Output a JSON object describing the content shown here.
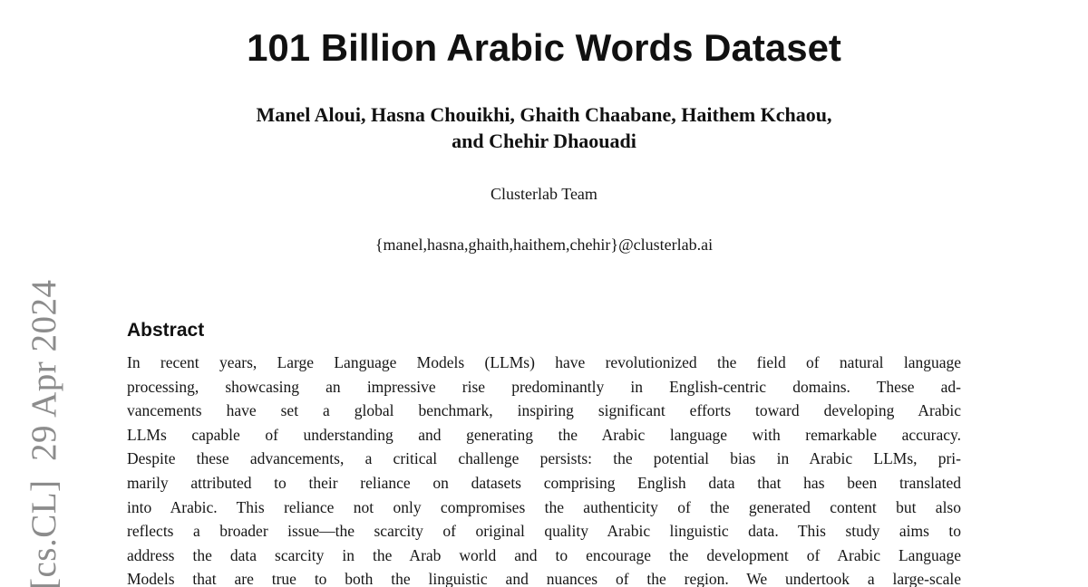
{
  "header": {
    "title": "101 Billion Arabic Words Dataset",
    "author_lines": [
      "Manel Aloui, Hasna Chouikhi, Ghaith Chaabane, Haithem Kchaou,",
      "and Chehir Dhaouadi"
    ],
    "affiliation": "Clusterlab Team",
    "email": "{manel,hasna,ghaith,haithem,chehir}@clusterlab.ai"
  },
  "watermark": {
    "text": "[cs.CL]  29 Apr 2024"
  },
  "abstract": {
    "heading": "Abstract",
    "lines": [
      "In recent years, Large Language Models (LLMs) have revolutionized the field of natural language",
      "processing, showcasing an impressive rise predominantly in English-centric domains. These ad-",
      "vancements have set a global benchmark, inspiring significant efforts toward developing Arabic",
      "LLMs capable of understanding and generating the Arabic language with remarkable accuracy.",
      "Despite these advancements, a critical challenge persists: the potential bias in Arabic LLMs, pri-",
      "marily attributed to their reliance on datasets comprising English data that has been translated",
      "into Arabic. This reliance not only compromises the authenticity of the generated content but also",
      "reflects a broader issue—the scarcity of original quality Arabic linguistic data. This study aims to",
      "address the data scarcity in the Arab world and to encourage the development of Arabic Language",
      "Models that are true to both the linguistic and nuances of the region. We undertook a large-scale"
    ]
  },
  "colors": {
    "background": "#ffffff",
    "text": "#161616",
    "watermark_gray": "#8c8c8c"
  }
}
